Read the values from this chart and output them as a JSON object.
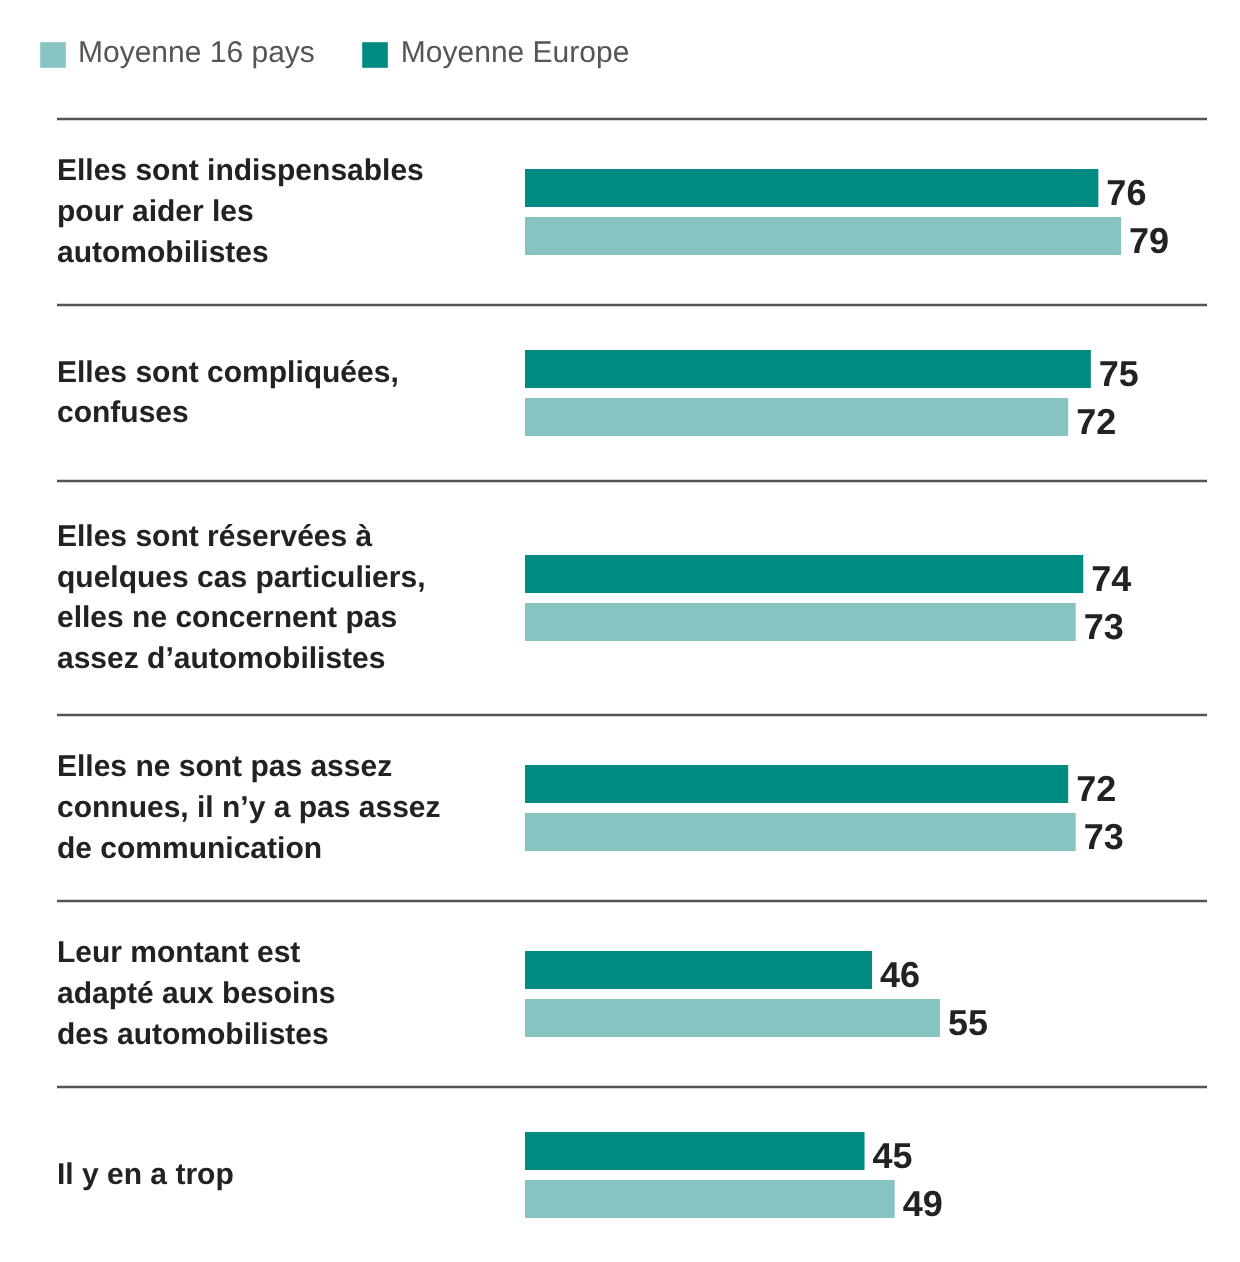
{
  "chart_data": {
    "type": "bar",
    "orientation": "horizontal",
    "data_labels": true,
    "legend": "top left",
    "categories": [
      "Elles sont indispensables\npour aider les\nautomobilistes",
      "Elles sont compliquées,\nconfuses",
      "Elles sont réservées à\nquelques cas particuliers,\nelles ne concernent pas\nassez d’automobilistes",
      "Elles ne sont pas assez\nconnues, il n’y a pas assez\nde communication",
      "Leur montant est\nadapté aux besoins\ndes automobilistes",
      "Il y en a trop"
    ],
    "series": [
      {
        "name": "Moyenne 16 pays",
        "color": "#86c4c2",
        "values": [
          79,
          72,
          73,
          73,
          55,
          49
        ]
      },
      {
        "name": "Moyenne Europe",
        "color": "#008b82",
        "values": [
          76,
          75,
          74,
          72,
          46,
          45
        ]
      }
    ]
  }
}
